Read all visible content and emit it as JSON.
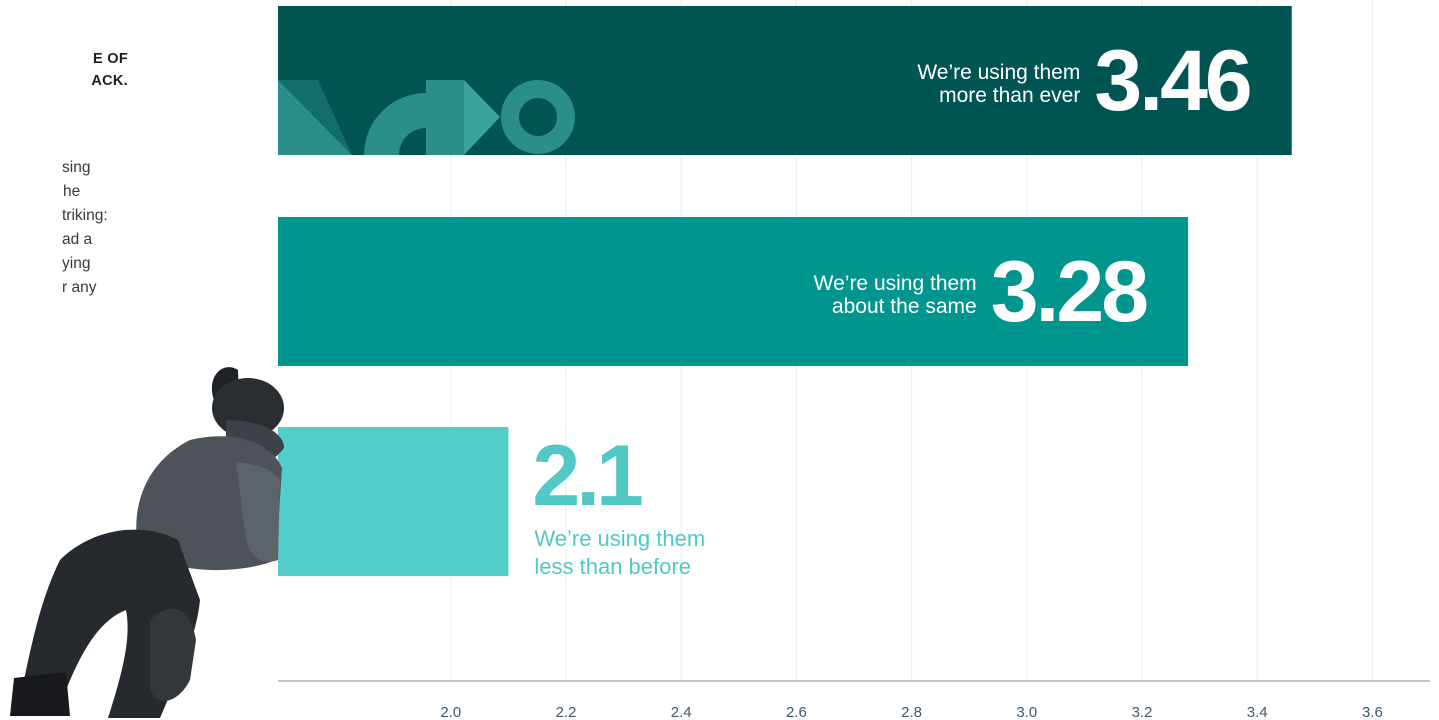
{
  "left_text": {
    "heading_lines": [
      "E OF",
      "ACK."
    ],
    "paragraph_lines": [
      "sing",
      "he",
      "triking:",
      "ad a",
      "ying",
      "r any"
    ]
  },
  "colors": {
    "bar_dark": "#005553",
    "bar_mid": "#00968f",
    "bar_light": "#52cdc9",
    "grid": "#e3f1f1",
    "axis": "#7a8c93",
    "deco": "#2a8f89"
  },
  "chart_data": {
    "type": "bar",
    "orientation": "horizontal",
    "categories": [
      "We’re using them more than ever",
      "We’re using them about the same",
      "We’re using them less than before"
    ],
    "label_lines": [
      [
        "We’re using them",
        "more than ever"
      ],
      [
        "We’re using them",
        "about the same"
      ],
      [
        "We’re using them",
        "less than before"
      ]
    ],
    "values": [
      3.46,
      3.28,
      2.1
    ],
    "value_labels": [
      "3.46",
      "3.28",
      "2.1"
    ],
    "xticks": [
      "2.0",
      "2.2",
      "2.4",
      "2.6",
      "2.8",
      "3.0",
      "3.2",
      "3.4",
      "3.6"
    ],
    "xlim": [
      1.7,
      3.7
    ],
    "grid": true,
    "title": "",
    "xlabel": "",
    "ylabel": ""
  }
}
